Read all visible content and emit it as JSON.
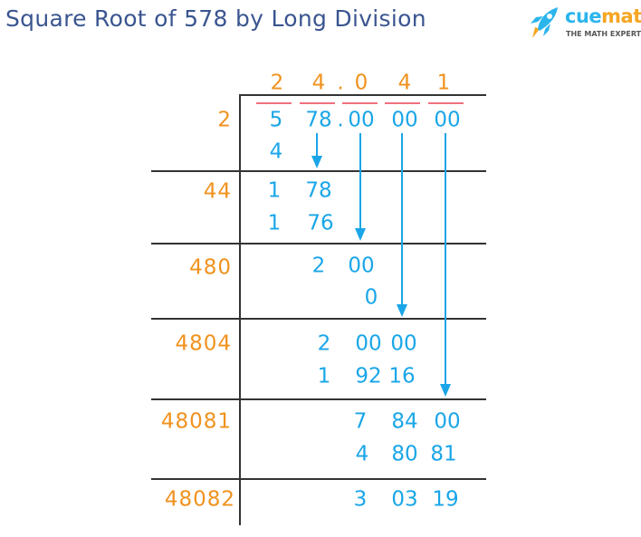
{
  "title": "Square Root of 578 by Long Division",
  "logo": {
    "brand_a": "cue",
    "brand_b": "math",
    "tagline": "THE MATH EXPERT",
    "icon": "rocket-icon"
  },
  "colors": {
    "divisor": "#f0921e",
    "quotient": "#f0921e",
    "work": "#1aa6e8",
    "underline": "#f0707f",
    "title": "#3a5590"
  },
  "quotient": [
    "2",
    "4",
    ".",
    "0",
    "4",
    "1"
  ],
  "dividend": [
    "5",
    "78",
    ".",
    "00",
    "00",
    "00"
  ],
  "divisors": [
    "2",
    "44",
    "480",
    "4804",
    "48081",
    "48082"
  ],
  "steps": {
    "s1": [
      "4"
    ],
    "s2": [
      "1",
      "78"
    ],
    "s3": [
      "1",
      "76"
    ],
    "s4": [
      "2",
      "00"
    ],
    "s5": [
      "0"
    ],
    "s6": [
      "2",
      "00",
      "00"
    ],
    "s7": [
      "1",
      "92",
      "16"
    ],
    "s8": [
      "7",
      "84",
      "00"
    ],
    "s9": [
      "4",
      "80",
      "81"
    ],
    "s10": [
      "3",
      "03",
      "19"
    ]
  }
}
